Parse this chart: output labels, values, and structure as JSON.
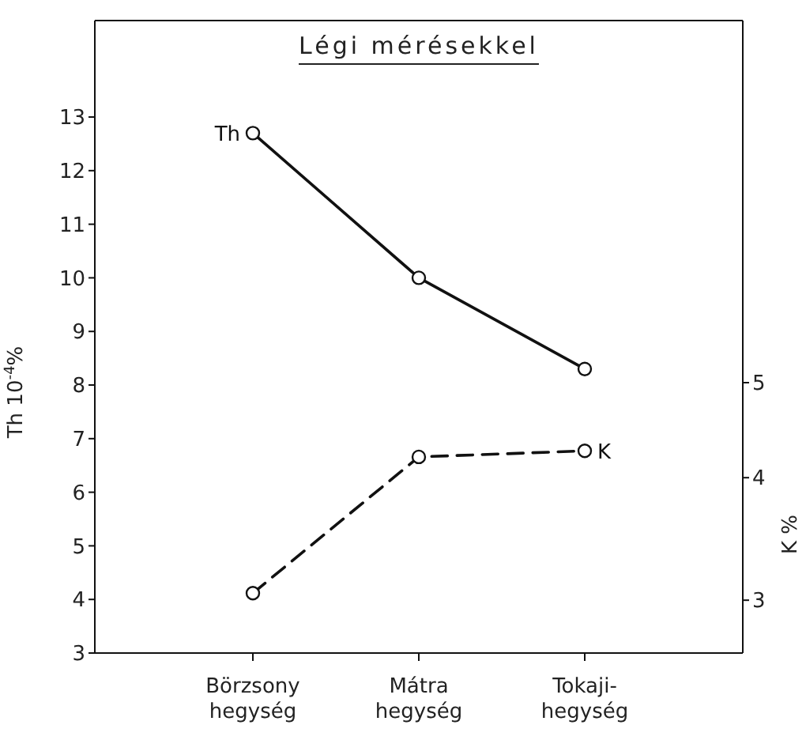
{
  "chart_data": {
    "type": "line",
    "title": "Légi mérésekkel",
    "categories": [
      "Börzsony\nhegység",
      "Mátra\nhegység",
      "Tokaji-\nhegység"
    ],
    "series": [
      {
        "name": "Th",
        "color": "#111111",
        "values": [
          12.7,
          10.0,
          8.3
        ],
        "line_style": "solid"
      },
      {
        "name": "K",
        "color": "#111111",
        "values": [
          3.05,
          4.2,
          4.26
        ],
        "axis": "y2",
        "line_style": "dashed"
      }
    ],
    "ylabel": "Th 10$^{-4}$%",
    "y2label": "K %",
    "ylim": [
      3,
      14.8
    ],
    "yticks": [
      3,
      4,
      5,
      6,
      7,
      8,
      9,
      10,
      11,
      12,
      13
    ],
    "y2lim": [
      2.65,
      11.7
    ],
    "y2ticks": [
      3,
      4,
      5
    ],
    "log": "y2",
    "marker": "circle"
  }
}
